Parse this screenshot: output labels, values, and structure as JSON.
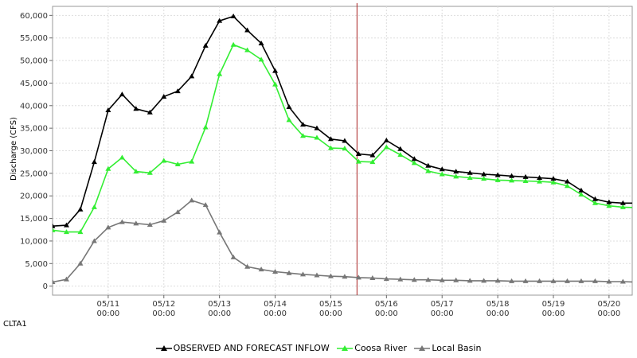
{
  "station": "CLTA1",
  "chart_data": {
    "type": "line",
    "title": "",
    "ylabel": "Discharge (CFS)",
    "xlabel": "",
    "ylim": [
      -2000,
      62000
    ],
    "yticks": [
      0,
      5000,
      10000,
      15000,
      20000,
      25000,
      30000,
      35000,
      40000,
      45000,
      50000,
      55000,
      60000
    ],
    "ytick_labels": [
      "0",
      "5,000",
      "10,000",
      "15,000",
      "20,000",
      "25,000",
      "30,000",
      "35,000",
      "40,000",
      "45,000",
      "50,000",
      "55,000",
      "60,000"
    ],
    "x_unit": "hours after 05/10 00:00",
    "xlim": [
      -6,
      244
    ],
    "xticks": [
      {
        "x": 18,
        "date": "05/11",
        "time": "00:00"
      },
      {
        "x": 42,
        "date": "05/12",
        "time": "00:00"
      },
      {
        "x": 66,
        "date": "05/13",
        "time": "00:00"
      },
      {
        "x": 90,
        "date": "05/14",
        "time": "00:00"
      },
      {
        "x": 114,
        "date": "05/15",
        "time": "00:00"
      },
      {
        "x": 138,
        "date": "05/16",
        "time": "00:00"
      },
      {
        "x": 162,
        "date": "05/17",
        "time": "00:00"
      },
      {
        "x": 186,
        "date": "05/18",
        "time": "00:00"
      },
      {
        "x": 210,
        "date": "05/19",
        "time": "00:00"
      },
      {
        "x": 234,
        "date": "05/20",
        "time": "00:00"
      }
    ],
    "grid": true,
    "legend_position": "bottom",
    "vline": {
      "x": 125.3,
      "color": "#aa2222"
    },
    "x": [
      -6,
      0,
      6,
      12,
      18,
      24,
      30,
      36,
      42,
      48,
      54,
      60,
      66,
      72,
      78,
      84,
      90,
      96,
      102,
      108,
      114,
      120,
      126,
      132,
      138,
      144,
      150,
      156,
      162,
      168,
      174,
      180,
      186,
      192,
      198,
      204,
      210,
      216,
      222,
      228,
      234,
      240,
      246
    ],
    "series": [
      {
        "name": "OBSERVED AND FORECAST INFLOW",
        "color": "#000000",
        "values": [
          13300,
          13500,
          17000,
          27500,
          39000,
          42500,
          39300,
          38500,
          42000,
          43200,
          46500,
          53300,
          58800,
          59800,
          56700,
          53800,
          47700,
          39700,
          35800,
          35000,
          32600,
          32200,
          29300,
          29000,
          32300,
          30400,
          28200,
          26700,
          25900,
          25400,
          25100,
          24800,
          24600,
          24400,
          24200,
          24000,
          23800,
          23200,
          21200,
          19300,
          18600,
          18400,
          18400
        ]
      },
      {
        "name": "Coosa River",
        "color": "#33ee33",
        "values": [
          12400,
          12000,
          12000,
          17500,
          26000,
          28500,
          25400,
          25100,
          27800,
          27000,
          27600,
          35200,
          47000,
          53500,
          52300,
          50200,
          44700,
          36800,
          33300,
          32900,
          30600,
          30500,
          27600,
          27500,
          30800,
          29100,
          27300,
          25500,
          24800,
          24300,
          24000,
          23800,
          23500,
          23400,
          23300,
          23200,
          23000,
          22200,
          20300,
          18400,
          17800,
          17500,
          17400
        ]
      },
      {
        "name": "Local Basin",
        "color": "#777777",
        "values": [
          900,
          1500,
          5000,
          10000,
          13000,
          14200,
          13900,
          13600,
          14500,
          16400,
          19000,
          18000,
          11900,
          6400,
          4300,
          3700,
          3200,
          2900,
          2600,
          2400,
          2200,
          2100,
          1900,
          1800,
          1600,
          1500,
          1400,
          1400,
          1300,
          1300,
          1200,
          1200,
          1200,
          1100,
          1100,
          1100,
          1100,
          1100,
          1100,
          1100,
          1000,
          1000,
          900
        ]
      }
    ]
  }
}
